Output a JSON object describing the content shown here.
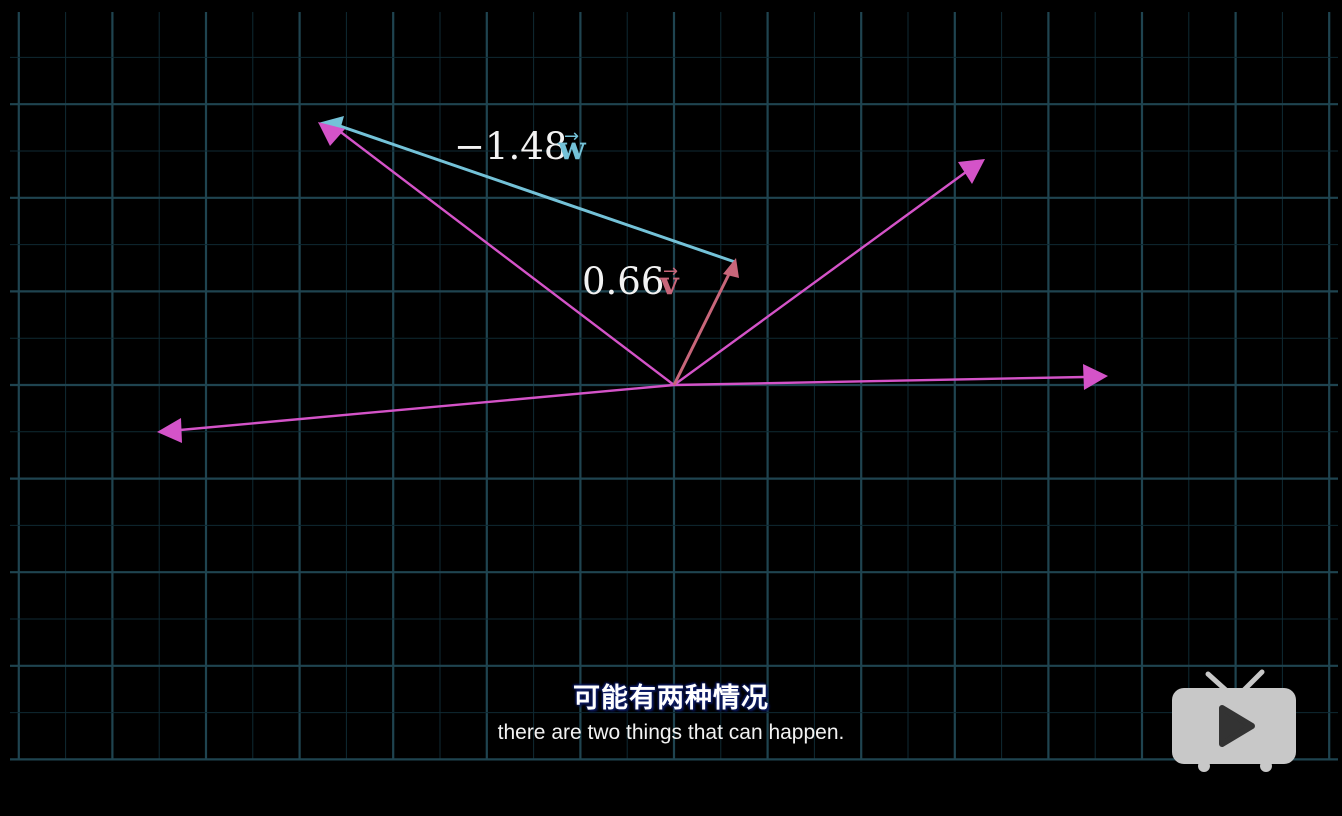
{
  "labels": {
    "w_coeff": "−1.48",
    "w_vec": "w",
    "w_arrow": "→",
    "v_coeff": "0.66",
    "v_vec": "v",
    "v_arrow": "→"
  },
  "subtitle": {
    "zh": "可能有两种情况",
    "en": "there are two things that can happen."
  },
  "colors": {
    "background": "#000000",
    "grid": "#1f4450",
    "span_arrows": "#d453c8",
    "w_color": "#74c2d8",
    "v_color": "#c8667a"
  },
  "icons": {
    "logo": "bilibili-tv-play-icon"
  }
}
